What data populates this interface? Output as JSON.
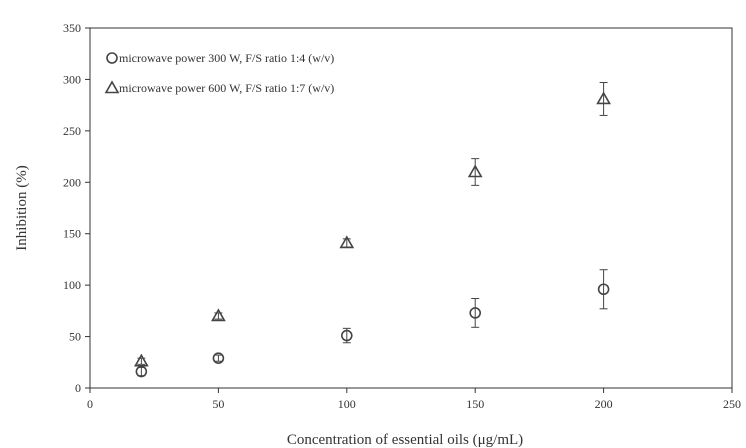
{
  "chart_data": {
    "type": "scatter",
    "title": "",
    "xlabel": "Concentration of essential oils (μg/mL)",
    "ylabel": "Inhibition (%)",
    "xlim": [
      0,
      250
    ],
    "ylim": [
      0,
      350
    ],
    "x_ticks": [
      0,
      50,
      100,
      150,
      200,
      250
    ],
    "y_ticks": [
      0,
      50,
      100,
      150,
      200,
      250,
      300,
      350
    ],
    "x_tick_labels": [
      "0",
      "50",
      "100",
      "150",
      "200",
      "250"
    ],
    "y_tick_labels": [
      "0",
      "50",
      "100",
      "150",
      "200",
      "250",
      "300",
      "350"
    ],
    "grid": false,
    "legend_position": "top-left",
    "series": [
      {
        "name": "microwave power 300 W, F/S ratio 1:4 (w/v)",
        "marker": "circle",
        "x": [
          20,
          50,
          100,
          150,
          200
        ],
        "y": [
          16,
          29,
          51,
          73,
          96
        ],
        "error": [
          4,
          3,
          7,
          14,
          19
        ]
      },
      {
        "name": "microwave power 600 W, F/S ratio 1:7 (w/v)",
        "marker": "triangle",
        "x": [
          20,
          50,
          100,
          150,
          200
        ],
        "y": [
          26,
          70,
          141,
          210,
          281
        ],
        "error": [
          3,
          3,
          4,
          13,
          16
        ]
      }
    ]
  },
  "colors": {
    "axis": "#333333",
    "marker": "#444444",
    "background": "#ffffff"
  }
}
